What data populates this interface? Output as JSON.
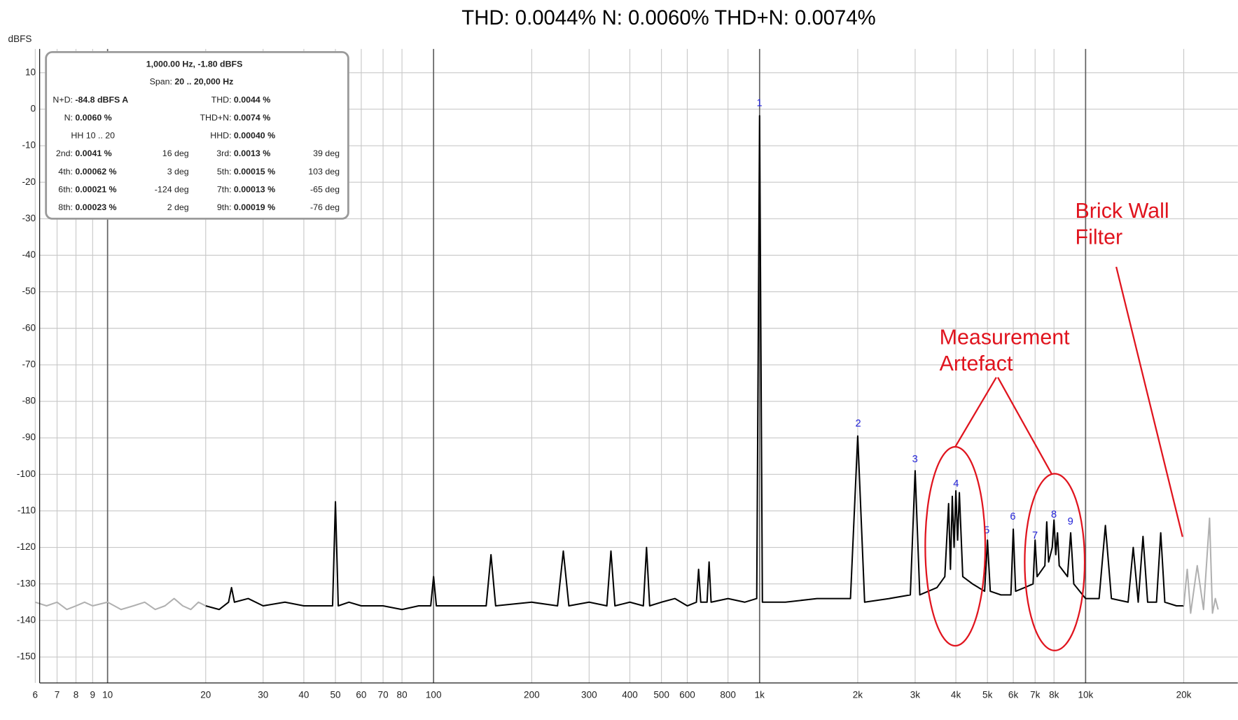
{
  "chart_data": {
    "type": "line",
    "title": "THD: 0.0044% N: 0.0060% THD+N: 0.0074%",
    "y_label": "dBFS",
    "log_x": true,
    "grid": true,
    "xlim": [
      6.19,
      29300
    ],
    "ylim": [
      -157.1,
      16.5
    ],
    "yticks": [
      10,
      0,
      -10,
      -20,
      -30,
      -40,
      -50,
      -60,
      -70,
      -80,
      -90,
      -100,
      -110,
      -120,
      -130,
      -140,
      -150
    ],
    "xticks": [
      6,
      7,
      8,
      9,
      10,
      20,
      30,
      40,
      50,
      60,
      70,
      80,
      100,
      200,
      300,
      400,
      500,
      600,
      800,
      {
        "value": 1000,
        "label": "1k"
      },
      {
        "value": 2000,
        "label": "2k"
      },
      {
        "value": 3000,
        "label": "3k"
      },
      {
        "value": 4000,
        "label": "4k"
      },
      {
        "value": 5000,
        "label": "5k"
      },
      {
        "value": 6000,
        "label": "6k"
      },
      {
        "value": 7000,
        "label": "7k"
      },
      {
        "value": 8000,
        "label": "8k"
      },
      {
        "value": 10000,
        "label": "10k"
      },
      {
        "value": 20000,
        "label": "20k"
      }
    ],
    "series": [
      {
        "color": "#000000",
        "x": [
          20,
          22,
          23.5,
          24,
          24.5,
          27,
          30,
          35,
          40,
          45,
          49,
          50,
          51,
          55,
          60,
          70,
          80,
          90,
          98,
          100,
          102,
          120,
          145,
          150,
          155,
          200,
          240,
          250,
          260,
          300,
          340,
          350,
          360,
          400,
          440,
          450,
          460,
          500,
          550,
          600,
          640,
          650,
          660,
          690,
          700,
          710,
          800,
          900,
          980,
          1000,
          1020,
          1200,
          1500,
          1900,
          2000,
          2100,
          2500,
          2900,
          3000,
          3100,
          3500,
          3700,
          3800,
          3850,
          3900,
          3950,
          4000,
          4050,
          4100,
          4200,
          4500,
          4900,
          5000,
          5100,
          5500,
          5900,
          6000,
          6100,
          6500,
          6900,
          7000,
          7100,
          7500,
          7600,
          7700,
          7900,
          8000,
          8100,
          8200,
          8300,
          8800,
          9000,
          9200,
          10000,
          11000,
          11500,
          12000,
          13500,
          14000,
          14500,
          15000,
          15500,
          16500,
          17000,
          17500,
          19000,
          20000
        ],
        "values": [
          -136,
          -137,
          -135,
          -131,
          -135,
          -134,
          -136,
          -135,
          -136,
          -136,
          -136,
          -107.5,
          -136,
          -135,
          -136,
          -136,
          -137,
          -136,
          -136,
          -128,
          -136,
          -136,
          -136,
          -122,
          -136,
          -135,
          -136,
          -121,
          -136,
          -135,
          -136,
          -121,
          -136,
          -135,
          -136,
          -120,
          -136,
          -135,
          -134,
          -136,
          -135,
          -126,
          -135,
          -135,
          -124,
          -135,
          -134,
          -135,
          -134,
          -1.8,
          -135,
          -135,
          -134,
          -134,
          -89.5,
          -135,
          -134,
          -133,
          -99,
          -133,
          -131,
          -128,
          -108,
          -126,
          -106,
          -120,
          -104.5,
          -118,
          -105,
          -128,
          -130,
          -132,
          -118,
          -132,
          -133,
          -133,
          -115,
          -132,
          -131,
          -130,
          -118,
          -128,
          -125,
          -113,
          -124,
          -120,
          -112.5,
          -122,
          -116,
          -125,
          -128,
          -116,
          -130,
          -134,
          -134,
          -114,
          -134,
          -135,
          -120,
          -135,
          -117,
          -135,
          -135,
          -116,
          -135,
          -136,
          -136
        ]
      },
      {
        "color": "#b0b0b0",
        "x": [
          6,
          6.5,
          7,
          7.5,
          8,
          8.5,
          9,
          10,
          11,
          12,
          13,
          14,
          15,
          16,
          17,
          18,
          19,
          20
        ],
        "values": [
          -135,
          -136,
          -135,
          -137,
          -136,
          -135,
          -136,
          -135,
          -137,
          -136,
          -135,
          -137,
          -136,
          -134,
          -136,
          -137,
          -135,
          -136
        ]
      },
      {
        "color": "#b0b0b0",
        "x": [
          20000,
          20500,
          21000,
          22000,
          23000,
          24000,
          24500,
          25000,
          25500
        ],
        "values": [
          -136,
          -126,
          -138,
          -125,
          -137,
          -112,
          -138,
          -134,
          -137
        ]
      }
    ],
    "harmonic_labels": [
      "1",
      "2",
      "3",
      "4",
      "5",
      "6",
      "7",
      "8",
      "9"
    ],
    "annotations": [
      [
        "Measurement",
        "Artefact"
      ],
      [
        "Brick Wall",
        "Filter"
      ]
    ],
    "info_box": {
      "lines": [
        [
          "1,000.00 Hz, -1.80 dBFS"
        ],
        [
          "Span:",
          "20 .. 20,000 Hz"
        ]
      ],
      "rows": [
        {
          "a": [
            "N+D:",
            "-84.8 dBFS A"
          ],
          "b": [
            "THD:",
            "0.0044 %"
          ]
        },
        {
          "a": [
            "N:",
            "0.0060 %"
          ],
          "b": [
            "THD+N:",
            "0.0074 %"
          ]
        },
        {
          "a": [
            "HH 10 .. 20"
          ],
          "b": [
            "HHD:",
            "0.00040 %"
          ]
        },
        {
          "a": [
            "2nd:",
            "0.0041 %",
            "16 deg"
          ],
          "b": [
            "3rd:",
            "0.0013 %",
            "39 deg"
          ]
        },
        {
          "a": [
            "4th:",
            "0.00062 %",
            "3 deg"
          ],
          "b": [
            "5th:",
            "0.00015 %",
            "103 deg"
          ]
        },
        {
          "a": [
            "6th:",
            "0.00021 %",
            "-124 deg"
          ],
          "b": [
            "7th:",
            "0.00013 %",
            "-65 deg"
          ]
        },
        {
          "a": [
            "8th:",
            "0.00023 %",
            "2 deg"
          ],
          "b": [
            "9th:",
            "0.00019 %",
            "-76 deg"
          ]
        }
      ]
    }
  }
}
